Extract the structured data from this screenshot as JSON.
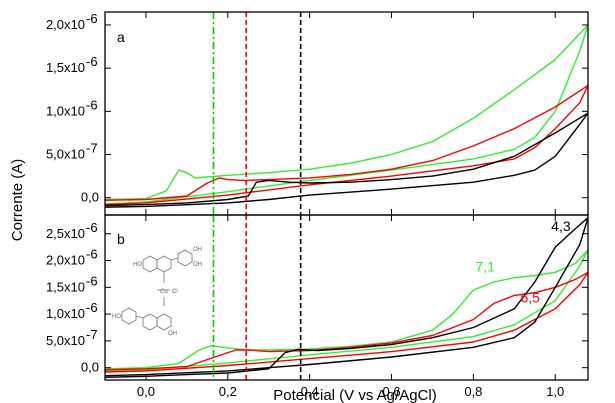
{
  "chart_data": [
    {
      "panel": "a",
      "type": "line",
      "xlabel": "Potencial (V vs Ag/AgCl)",
      "ylabel": "Corrente (A)",
      "xlim": [
        -0.1,
        1.08
      ],
      "ylim": [
        -2e-07,
        2.15e-06
      ],
      "yticks": [
        0,
        5e-07,
        1e-06,
        1.5e-06,
        2e-06
      ],
      "ytick_labels": [
        "0,0",
        "5,0x10",
        "1,0x10",
        "1,5x10",
        "2,0x10"
      ],
      "ytick_exponents": [
        "",
        "-7",
        "-6",
        "-6",
        "-6"
      ],
      "grid": false,
      "vlines": [
        {
          "x": 0.165,
          "color": "#00cc00",
          "style": "dash-dot"
        },
        {
          "x": 0.245,
          "color": "#ff0000",
          "style": "dashed"
        },
        {
          "x": 0.378,
          "color": "#000000",
          "style": "dashed"
        }
      ],
      "series": [
        {
          "color": "#33ee33",
          "points": [
            [
              -0.1,
              -2e-08
            ],
            [
              0.0,
              -1e-08
            ],
            [
              0.05,
              8e-08
            ],
            [
              0.08,
              3.2e-07
            ],
            [
              0.1,
              2.9e-07
            ],
            [
              0.12,
              2.3e-07
            ],
            [
              0.15,
              2.4e-07
            ],
            [
              0.2,
              2.6e-07
            ],
            [
              0.3,
              2.9e-07
            ],
            [
              0.4,
              3.3e-07
            ],
            [
              0.5,
              4e-07
            ],
            [
              0.6,
              5e-07
            ],
            [
              0.7,
              6.5e-07
            ],
            [
              0.8,
              9.2e-07
            ],
            [
              0.9,
              1.25e-06
            ],
            [
              1.0,
              1.6e-06
            ],
            [
              1.08,
              2e-06
            ],
            [
              1.06,
              1.7e-06
            ],
            [
              1.0,
              1e-06
            ],
            [
              0.95,
              7e-07
            ],
            [
              0.9,
              5.6e-07
            ],
            [
              0.8,
              4.5e-07
            ],
            [
              0.6,
              3.2e-07
            ],
            [
              0.4,
              2e-07
            ],
            [
              0.2,
              7e-08
            ],
            [
              0.0,
              -5e-08
            ],
            [
              -0.1,
              -7e-08
            ]
          ]
        },
        {
          "color": "#ff0000",
          "points": [
            [
              -0.1,
              -3e-08
            ],
            [
              0.0,
              -2e-08
            ],
            [
              0.1,
              2e-08
            ],
            [
              0.15,
              1.7e-07
            ],
            [
              0.18,
              2.3e-07
            ],
            [
              0.2,
              2.1e-07
            ],
            [
              0.24,
              2e-07
            ],
            [
              0.3,
              2.1e-07
            ],
            [
              0.4,
              2.3e-07
            ],
            [
              0.5,
              2.7e-07
            ],
            [
              0.6,
              3.3e-07
            ],
            [
              0.7,
              4.3e-07
            ],
            [
              0.8,
              6e-07
            ],
            [
              0.9,
              8e-07
            ],
            [
              1.0,
              1.05e-06
            ],
            [
              1.08,
              1.3e-06
            ],
            [
              1.06,
              1.1e-06
            ],
            [
              1.0,
              8e-07
            ],
            [
              0.95,
              5.8e-07
            ],
            [
              0.9,
              4.5e-07
            ],
            [
              0.8,
              3.7e-07
            ],
            [
              0.6,
              2.5e-07
            ],
            [
              0.4,
              1.5e-07
            ],
            [
              0.3,
              9e-08
            ],
            [
              0.2,
              3e-08
            ],
            [
              0.0,
              -6e-08
            ],
            [
              -0.1,
              -8e-08
            ]
          ]
        },
        {
          "color": "#000000",
          "points": [
            [
              -0.1,
              -9e-08
            ],
            [
              0.0,
              -8e-08
            ],
            [
              0.1,
              -6e-08
            ],
            [
              0.2,
              -2e-08
            ],
            [
              0.25,
              2e-08
            ],
            [
              0.27,
              1.8e-07
            ],
            [
              0.3,
              2e-07
            ],
            [
              0.35,
              1.8e-07
            ],
            [
              0.4,
              1.7e-07
            ],
            [
              0.5,
              1.8e-07
            ],
            [
              0.6,
              2.1e-07
            ],
            [
              0.7,
              2.5e-07
            ],
            [
              0.8,
              3.3e-07
            ],
            [
              0.9,
              4.8e-07
            ],
            [
              1.0,
              7.5e-07
            ],
            [
              1.08,
              9.8e-07
            ],
            [
              1.06,
              8.5e-07
            ],
            [
              1.0,
              4.8e-07
            ],
            [
              0.95,
              3.2e-07
            ],
            [
              0.9,
              2.6e-07
            ],
            [
              0.8,
              1.8e-07
            ],
            [
              0.6,
              1e-07
            ],
            [
              0.4,
              3e-08
            ],
            [
              0.3,
              -2e-08
            ],
            [
              0.2,
              -6e-08
            ],
            [
              0.0,
              -1e-07
            ],
            [
              -0.1,
              -1.1e-07
            ]
          ]
        }
      ]
    },
    {
      "panel": "b",
      "type": "line",
      "xlabel": "Potencial (V vs Ag/AgCl)",
      "ylabel": "Corrente (A)",
      "xlim": [
        -0.1,
        1.08
      ],
      "ylim": [
        -2.3e-07,
        2.85e-06
      ],
      "xticks": [
        0.0,
        0.2,
        0.4,
        0.6,
        0.8,
        1.0
      ],
      "xtick_labels": [
        "0,0",
        "0,2",
        "0,4",
        "0,6",
        "0,8",
        "1,0"
      ],
      "yticks": [
        0,
        5e-07,
        1e-06,
        1.5e-06,
        2e-06,
        2.5e-06
      ],
      "ytick_labels": [
        "0,0",
        "5,0x10",
        "1,0x10",
        "1,5x10",
        "2,0x10",
        "2,5x10"
      ],
      "ytick_exponents": [
        "",
        "-7",
        "-6",
        "-6",
        "-6",
        "-6"
      ],
      "grid": false,
      "vlines": [
        {
          "x": 0.165,
          "color": "#00cc00",
          "style": "dash-dot"
        },
        {
          "x": 0.245,
          "color": "#ff0000",
          "style": "dashed"
        },
        {
          "x": 0.378,
          "color": "#000000",
          "style": "dashed"
        }
      ],
      "annotations": [
        {
          "text": "4,3",
          "color": "#000000",
          "x": 0.99,
          "y": 2.55e-06
        },
        {
          "text": "7,1",
          "color": "#33ee33",
          "x": 0.805,
          "y": 1.8e-06
        },
        {
          "text": "6,5",
          "color": "#ff0000",
          "x": 0.915,
          "y": 1.22e-06
        }
      ],
      "series": [
        {
          "name": "7,1",
          "color": "#33ee33",
          "points": [
            [
              -0.1,
              -2e-08
            ],
            [
              0.0,
              0
            ],
            [
              0.08,
              8e-08
            ],
            [
              0.13,
              3.3e-07
            ],
            [
              0.16,
              4.1e-07
            ],
            [
              0.2,
              3.7e-07
            ],
            [
              0.25,
              3.3e-07
            ],
            [
              0.3,
              3.3e-07
            ],
            [
              0.4,
              3.5e-07
            ],
            [
              0.5,
              4e-07
            ],
            [
              0.6,
              4.8e-07
            ],
            [
              0.7,
              7e-07
            ],
            [
              0.75,
              1e-06
            ],
            [
              0.8,
              1.45e-06
            ],
            [
              0.85,
              1.6e-06
            ],
            [
              0.9,
              1.68e-06
            ],
            [
              0.95,
              1.72e-06
            ],
            [
              1.0,
              1.78e-06
            ],
            [
              1.05,
              1.95e-06
            ],
            [
              1.08,
              2.2e-06
            ],
            [
              1.06,
              1.9e-06
            ],
            [
              1.0,
              1.25e-06
            ],
            [
              0.9,
              8e-07
            ],
            [
              0.8,
              5.8e-07
            ],
            [
              0.6,
              3.8e-07
            ],
            [
              0.4,
              2.4e-07
            ],
            [
              0.2,
              9e-08
            ],
            [
              0.0,
              -4e-08
            ],
            [
              -0.1,
              -6e-08
            ]
          ]
        },
        {
          "name": "6,5",
          "color": "#ff0000",
          "points": [
            [
              -0.1,
              -4e-08
            ],
            [
              0.0,
              -2e-08
            ],
            [
              0.1,
              2e-08
            ],
            [
              0.18,
              2.3e-07
            ],
            [
              0.22,
              3.3e-07
            ],
            [
              0.25,
              3.3e-07
            ],
            [
              0.3,
              3e-07
            ],
            [
              0.4,
              3.2e-07
            ],
            [
              0.5,
              3.8e-07
            ],
            [
              0.6,
              4.6e-07
            ],
            [
              0.7,
              6e-07
            ],
            [
              0.8,
              9e-07
            ],
            [
              0.85,
              1.2e-06
            ],
            [
              0.9,
              1.35e-06
            ],
            [
              0.95,
              1.4e-06
            ],
            [
              1.0,
              1.5e-06
            ],
            [
              1.05,
              1.65e-06
            ],
            [
              1.08,
              1.78e-06
            ],
            [
              1.06,
              1.55e-06
            ],
            [
              1.0,
              1.1e-06
            ],
            [
              0.9,
              7e-07
            ],
            [
              0.8,
              4.8e-07
            ],
            [
              0.6,
              3e-07
            ],
            [
              0.4,
              1.7e-07
            ],
            [
              0.2,
              4e-08
            ],
            [
              0.0,
              -6e-08
            ],
            [
              -0.1,
              -8e-08
            ]
          ]
        },
        {
          "name": "4,3",
          "color": "#000000",
          "points": [
            [
              -0.1,
              -1.8e-07
            ],
            [
              0.0,
              -1.6e-07
            ],
            [
              0.1,
              -1.3e-07
            ],
            [
              0.2,
              -1e-07
            ],
            [
              0.3,
              -2e-08
            ],
            [
              0.34,
              2.8e-07
            ],
            [
              0.37,
              3.4e-07
            ],
            [
              0.42,
              3.2e-07
            ],
            [
              0.5,
              3.6e-07
            ],
            [
              0.6,
              4.3e-07
            ],
            [
              0.7,
              5.6e-07
            ],
            [
              0.8,
              7.5e-07
            ],
            [
              0.9,
              1.1e-06
            ],
            [
              0.95,
              1.6e-06
            ],
            [
              1.0,
              2.25e-06
            ],
            [
              1.05,
              2.6e-06
            ],
            [
              1.08,
              2.8e-06
            ],
            [
              1.06,
              2.3e-06
            ],
            [
              1.0,
              1.5e-06
            ],
            [
              0.95,
              8.5e-07
            ],
            [
              0.9,
              5.6e-07
            ],
            [
              0.8,
              3.8e-07
            ],
            [
              0.6,
              2e-07
            ],
            [
              0.4,
              6e-08
            ],
            [
              0.3,
              0
            ],
            [
              0.2,
              -6e-08
            ],
            [
              0.0,
              -1.3e-07
            ],
            [
              -0.1,
              -1.5e-07
            ]
          ]
        }
      ]
    }
  ],
  "colors": {
    "green": "#33ee33",
    "red": "#ff0000",
    "black": "#000000",
    "structure": "#777777"
  },
  "inset_structure": {
    "icon": "copper-flavonoid-complex-structure",
    "visible_labels": [
      "HO",
      "OH",
      "OH",
      "Cu",
      "Cl",
      "HO",
      "OH"
    ]
  }
}
